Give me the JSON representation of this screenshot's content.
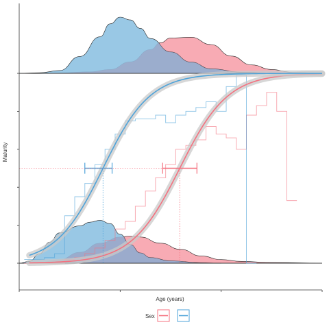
{
  "chart_data": {
    "type": "line",
    "title": "",
    "xlabel": "Age (years)",
    "ylabel": "Maturity",
    "xlim": [
      0,
      30
    ],
    "ylim": [
      -0.15,
      1.1
    ],
    "grid": false,
    "legend": {
      "title": "Sex",
      "position": "bottom",
      "entries": [
        "",
        ""
      ]
    },
    "colors": {
      "female": "#f4717f",
      "male": "#4ea3d9",
      "female_fill": "#f7a2ac",
      "male_fill": "#8ec2e2",
      "overlap_fill": "#9c9dbf",
      "band": "#c9c9c9"
    },
    "series": [
      {
        "color": "#f4717f",
        "logistic_fit": {
          "a50": 15.9,
          "slope": 0.42,
          "ci_a50": [
            14.2,
            17.6
          ]
        },
        "empirical_x": [
          1,
          2,
          3,
          4,
          5,
          6,
          7,
          8,
          9,
          10,
          11,
          12,
          13,
          14,
          15,
          16,
          17,
          18,
          19,
          20,
          21,
          22,
          23,
          24,
          25,
          26,
          27
        ],
        "empirical_y": [
          0.0,
          0.0,
          0.0,
          0.0,
          0.02,
          0.03,
          0.05,
          0.08,
          0.12,
          0.18,
          0.22,
          0.3,
          0.38,
          0.45,
          0.52,
          0.6,
          0.62,
          0.65,
          0.72,
          0.68,
          0.66,
          0.6,
          0.78,
          0.83,
          0.9,
          0.8,
          0.33
        ],
        "age_density_top": [
          [
            0,
            0.0
          ],
          [
            4,
            0.01
          ],
          [
            7,
            0.04
          ],
          [
            9,
            0.1
          ],
          [
            11,
            0.3
          ],
          [
            13,
            0.62
          ],
          [
            14,
            0.8
          ],
          [
            15,
            0.92
          ],
          [
            17,
            0.94
          ],
          [
            19,
            0.75
          ],
          [
            21,
            0.45
          ],
          [
            23,
            0.22
          ],
          [
            25,
            0.1
          ],
          [
            27,
            0.03
          ],
          [
            30,
            0.0
          ]
        ],
        "age_density_bottom": [
          [
            0,
            0.0
          ],
          [
            2,
            0.02
          ],
          [
            4,
            0.1
          ],
          [
            6,
            0.3
          ],
          [
            8,
            0.55
          ],
          [
            10,
            0.72
          ],
          [
            11,
            0.75
          ],
          [
            12,
            0.72
          ],
          [
            14,
            0.55
          ],
          [
            16,
            0.38
          ],
          [
            18,
            0.2
          ],
          [
            20,
            0.1
          ],
          [
            22,
            0.05
          ],
          [
            25,
            0.02
          ],
          [
            30,
            0.0
          ]
        ]
      },
      {
        "color": "#4ea3d9",
        "logistic_fit": {
          "a50": 8.3,
          "slope": 0.43,
          "ci_a50": [
            6.5,
            9.2
          ]
        },
        "empirical_x": [
          1,
          2,
          3,
          4,
          5,
          6,
          7,
          8,
          9,
          10,
          11,
          12,
          13,
          14,
          15,
          16,
          17,
          18,
          19,
          20,
          21,
          22,
          23
        ],
        "empirical_y": [
          0.02,
          0.02,
          0.03,
          0.05,
          0.25,
          0.35,
          0.42,
          0.52,
          0.6,
          0.68,
          0.75,
          0.76,
          0.76,
          0.78,
          0.74,
          0.78,
          0.8,
          0.82,
          0.85,
          0.8,
          0.93,
          0.99,
          0.0
        ],
        "age_density_top": [
          [
            0,
            0.0
          ],
          [
            2,
            0.01
          ],
          [
            4,
            0.05
          ],
          [
            6,
            0.3
          ],
          [
            8,
            0.65
          ],
          [
            9,
            0.88
          ],
          [
            10,
            1.0
          ],
          [
            11,
            0.95
          ],
          [
            12,
            0.8
          ],
          [
            13,
            0.62
          ],
          [
            15,
            0.38
          ],
          [
            17,
            0.2
          ],
          [
            19,
            0.08
          ],
          [
            22,
            0.02
          ],
          [
            25,
            0.0
          ]
        ],
        "age_density_bottom": [
          [
            0,
            0.0
          ],
          [
            1,
            0.04
          ],
          [
            2,
            0.2
          ],
          [
            3,
            0.45
          ],
          [
            4,
            0.65
          ],
          [
            6,
            0.8
          ],
          [
            7,
            0.88
          ],
          [
            8,
            0.92
          ],
          [
            9,
            0.85
          ],
          [
            10,
            0.62
          ],
          [
            11,
            0.4
          ],
          [
            12,
            0.22
          ],
          [
            13,
            0.12
          ],
          [
            15,
            0.05
          ],
          [
            18,
            0.01
          ],
          [
            20,
            0.0
          ]
        ]
      }
    ]
  }
}
